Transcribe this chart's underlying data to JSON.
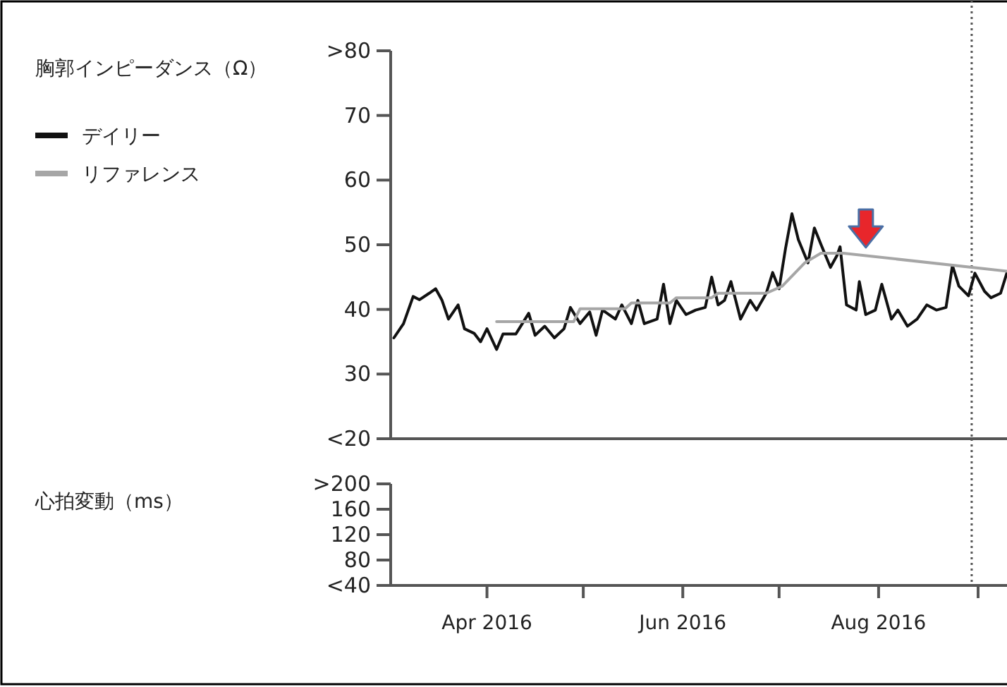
{
  "chart_data": [
    {
      "type": "line",
      "ylabel": "胸郭インピーダンス（Ω）",
      "xlim": [
        "2016-03-02",
        "2016-09-10"
      ],
      "ylim": [
        20,
        80
      ],
      "yticks": [
        {
          "value": 20,
          "label": "<20"
        },
        30,
        40,
        50,
        60,
        70,
        {
          "value": 80,
          "label": ">80"
        }
      ],
      "tick_labels": "y",
      "legend": "left",
      "grid": false,
      "series": [
        {
          "name": "デイリー",
          "color": "#111111",
          "x": [
            "2016-03-03",
            "2016-03-06",
            "2016-03-09",
            "2016-03-11",
            "2016-03-14",
            "2016-03-16",
            "2016-03-18",
            "2016-03-20",
            "2016-03-23",
            "2016-03-25",
            "2016-03-28",
            "2016-03-30",
            "2016-04-01",
            "2016-04-04",
            "2016-04-06",
            "2016-04-10",
            "2016-04-12",
            "2016-04-14",
            "2016-04-16",
            "2016-04-19",
            "2016-04-22",
            "2016-04-25",
            "2016-04-27",
            "2016-04-30",
            "2016-05-03",
            "2016-05-05",
            "2016-05-07",
            "2016-05-11",
            "2016-05-13",
            "2016-05-16",
            "2016-05-18",
            "2016-05-20",
            "2016-05-24",
            "2016-05-26",
            "2016-05-28",
            "2016-05-30",
            "2016-06-02",
            "2016-06-05",
            "2016-06-08",
            "2016-06-10",
            "2016-06-12",
            "2016-06-14",
            "2016-06-16",
            "2016-06-19",
            "2016-06-22",
            "2016-06-24",
            "2016-06-27",
            "2016-06-29",
            "2016-07-01",
            "2016-07-03",
            "2016-07-05",
            "2016-07-07",
            "2016-07-10",
            "2016-07-12",
            "2016-07-14",
            "2016-07-17",
            "2016-07-19",
            "2016-07-20",
            "2016-07-22",
            "2016-07-25",
            "2016-07-26",
            "2016-07-28",
            "2016-07-31",
            "2016-08-02",
            "2016-08-05",
            "2016-08-07",
            "2016-08-10",
            "2016-08-13",
            "2016-08-16",
            "2016-08-19",
            "2016-08-22",
            "2016-08-24",
            "2016-08-26",
            "2016-08-29",
            "2016-08-31",
            "2016-09-03",
            "2016-09-05",
            "2016-09-08",
            "2016-09-10"
          ],
          "values": [
            35.6,
            37.8,
            42.0,
            41.5,
            42.5,
            43.2,
            41.4,
            38.5,
            40.7,
            37.0,
            36.3,
            35.0,
            37.0,
            33.8,
            36.2,
            36.2,
            37.8,
            39.4,
            36.0,
            37.4,
            35.6,
            37.0,
            40.3,
            37.8,
            39.6,
            36.0,
            39.9,
            38.5,
            40.7,
            37.8,
            41.4,
            37.8,
            38.5,
            43.9,
            37.8,
            41.4,
            39.2,
            39.9,
            40.3,
            45.0,
            40.7,
            41.4,
            44.3,
            38.5,
            41.4,
            39.9,
            42.5,
            45.7,
            43.2,
            49.4,
            54.8,
            50.8,
            47.2,
            52.6,
            50.1,
            46.5,
            48.3,
            49.7,
            40.7,
            39.9,
            44.3,
            39.2,
            39.9,
            43.9,
            38.5,
            39.9,
            37.4,
            38.5,
            40.7,
            39.9,
            40.3,
            46.8,
            43.6,
            42.1,
            45.6,
            42.8,
            41.8,
            42.5,
            45.7
          ]
        },
        {
          "name": "リファレンス",
          "color": "#a6a6a6",
          "x": [
            "2016-04-04",
            "2016-04-28",
            "2016-04-30",
            "2016-05-14",
            "2016-05-16",
            "2016-05-28",
            "2016-05-30",
            "2016-06-10",
            "2016-06-12",
            "2016-06-27",
            "2016-07-02",
            "2016-07-09",
            "2016-07-14",
            "2016-07-21",
            "2016-09-10"
          ],
          "values": [
            38.1,
            38.1,
            40.1,
            40.1,
            41.0,
            41.0,
            41.8,
            41.8,
            42.5,
            42.5,
            43.6,
            47.2,
            48.7,
            48.7,
            45.9
          ]
        }
      ],
      "ref_lines": [
        {
          "axis": "x",
          "value": "2016-08-30",
          "color": "#555555",
          "line_style": "dotted"
        }
      ]
    },
    {
      "type": "line",
      "ylabel": "心拍変動（ms）",
      "xlim": [
        "2016-03-02",
        "2016-09-10"
      ],
      "ylim": [
        40,
        200
      ],
      "yticks": [
        {
          "value": 40,
          "label": "<40"
        },
        80,
        120,
        160,
        {
          "value": 200,
          "label": ">200"
        }
      ],
      "xticks": [
        {
          "value": "2016-04-01",
          "label": "Apr 2016"
        },
        {
          "value": "2016-05-01",
          "label": null
        },
        {
          "value": "2016-06-01",
          "label": "Jun 2016"
        },
        {
          "value": "2016-07-01",
          "label": null
        },
        {
          "value": "2016-08-01",
          "label": "Aug 2016"
        },
        {
          "value": "2016-09-01",
          "label": null
        }
      ],
      "grid": false,
      "ref_lines": [
        {
          "axis": "x",
          "value": "2016-08-30",
          "color": "#555555",
          "line_style": "dotted"
        }
      ]
    }
  ]
}
